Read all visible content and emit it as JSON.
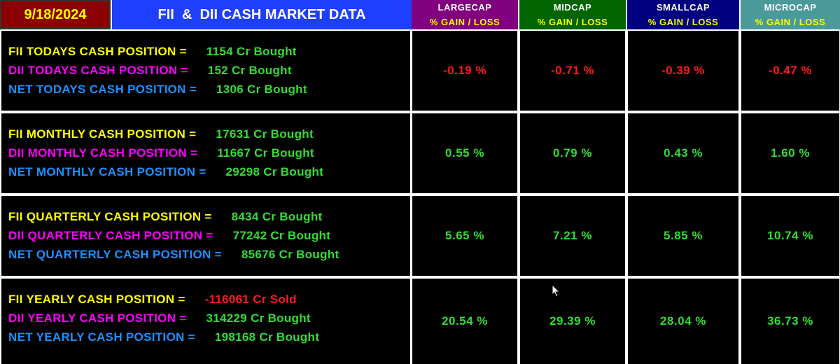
{
  "header": {
    "date": "9/18/2024",
    "title": "FII  &  DII CASH MARKET DATA",
    "columns": [
      {
        "name": "LARGECAP",
        "subtitle": "% GAIN / LOSS"
      },
      {
        "name": "MIDCAP",
        "subtitle": "% GAIN / LOSS"
      },
      {
        "name": "SMALLCAP",
        "subtitle": "% GAIN / LOSS"
      },
      {
        "name": "MICROCAP",
        "subtitle": "% GAIN / LOSS"
      }
    ]
  },
  "rows": [
    {
      "lines": [
        {
          "label": "FII TODAYS CASH POSITION =",
          "value": "1154 Cr Bought"
        },
        {
          "label": "DII TODAYS CASH POSITION =",
          "value": "152 Cr Bought"
        },
        {
          "label": "NET TODAYS CASH POSITION =",
          "value": "1306 Cr Bought"
        }
      ],
      "changes": [
        "-0.19 %",
        "-0.71 %",
        "-0.39 %",
        "-0.47 %"
      ]
    },
    {
      "lines": [
        {
          "label": "FII MONTHLY CASH POSITION =",
          "value": "17631 Cr Bought"
        },
        {
          "label": "DII MONTHLY CASH POSITION =",
          "value": "11667 Cr Bought"
        },
        {
          "label": "NET MONTHLY CASH POSITION =",
          "value": "29298 Cr Bought"
        }
      ],
      "changes": [
        "0.55 %",
        "0.79 %",
        "0.43 %",
        "1.60 %"
      ]
    },
    {
      "lines": [
        {
          "label": "FII QUARTERLY CASH POSITION =",
          "value": "8434 Cr Bought"
        },
        {
          "label": "DII QUARTERLY CASH POSITION =",
          "value": "77242 Cr Bought"
        },
        {
          "label": "NET QUARTERLY CASH POSITION =",
          "value": "85676 Cr Bought"
        }
      ],
      "changes": [
        "5.65 %",
        "7.21 %",
        "5.85 %",
        "10.74 %"
      ]
    },
    {
      "lines": [
        {
          "label": "FII YEARLY CASH POSITION =",
          "value": "-116061 Cr Sold"
        },
        {
          "label": "DII YEARLY CASH POSITION =",
          "value": "314229 Cr Bought"
        },
        {
          "label": "NET YEARLY CASH POSITION =",
          "value": "198168 Cr Bought"
        }
      ],
      "changes": [
        "20.54 %",
        "29.39 %",
        "28.04 %",
        "36.73 %"
      ]
    }
  ]
}
